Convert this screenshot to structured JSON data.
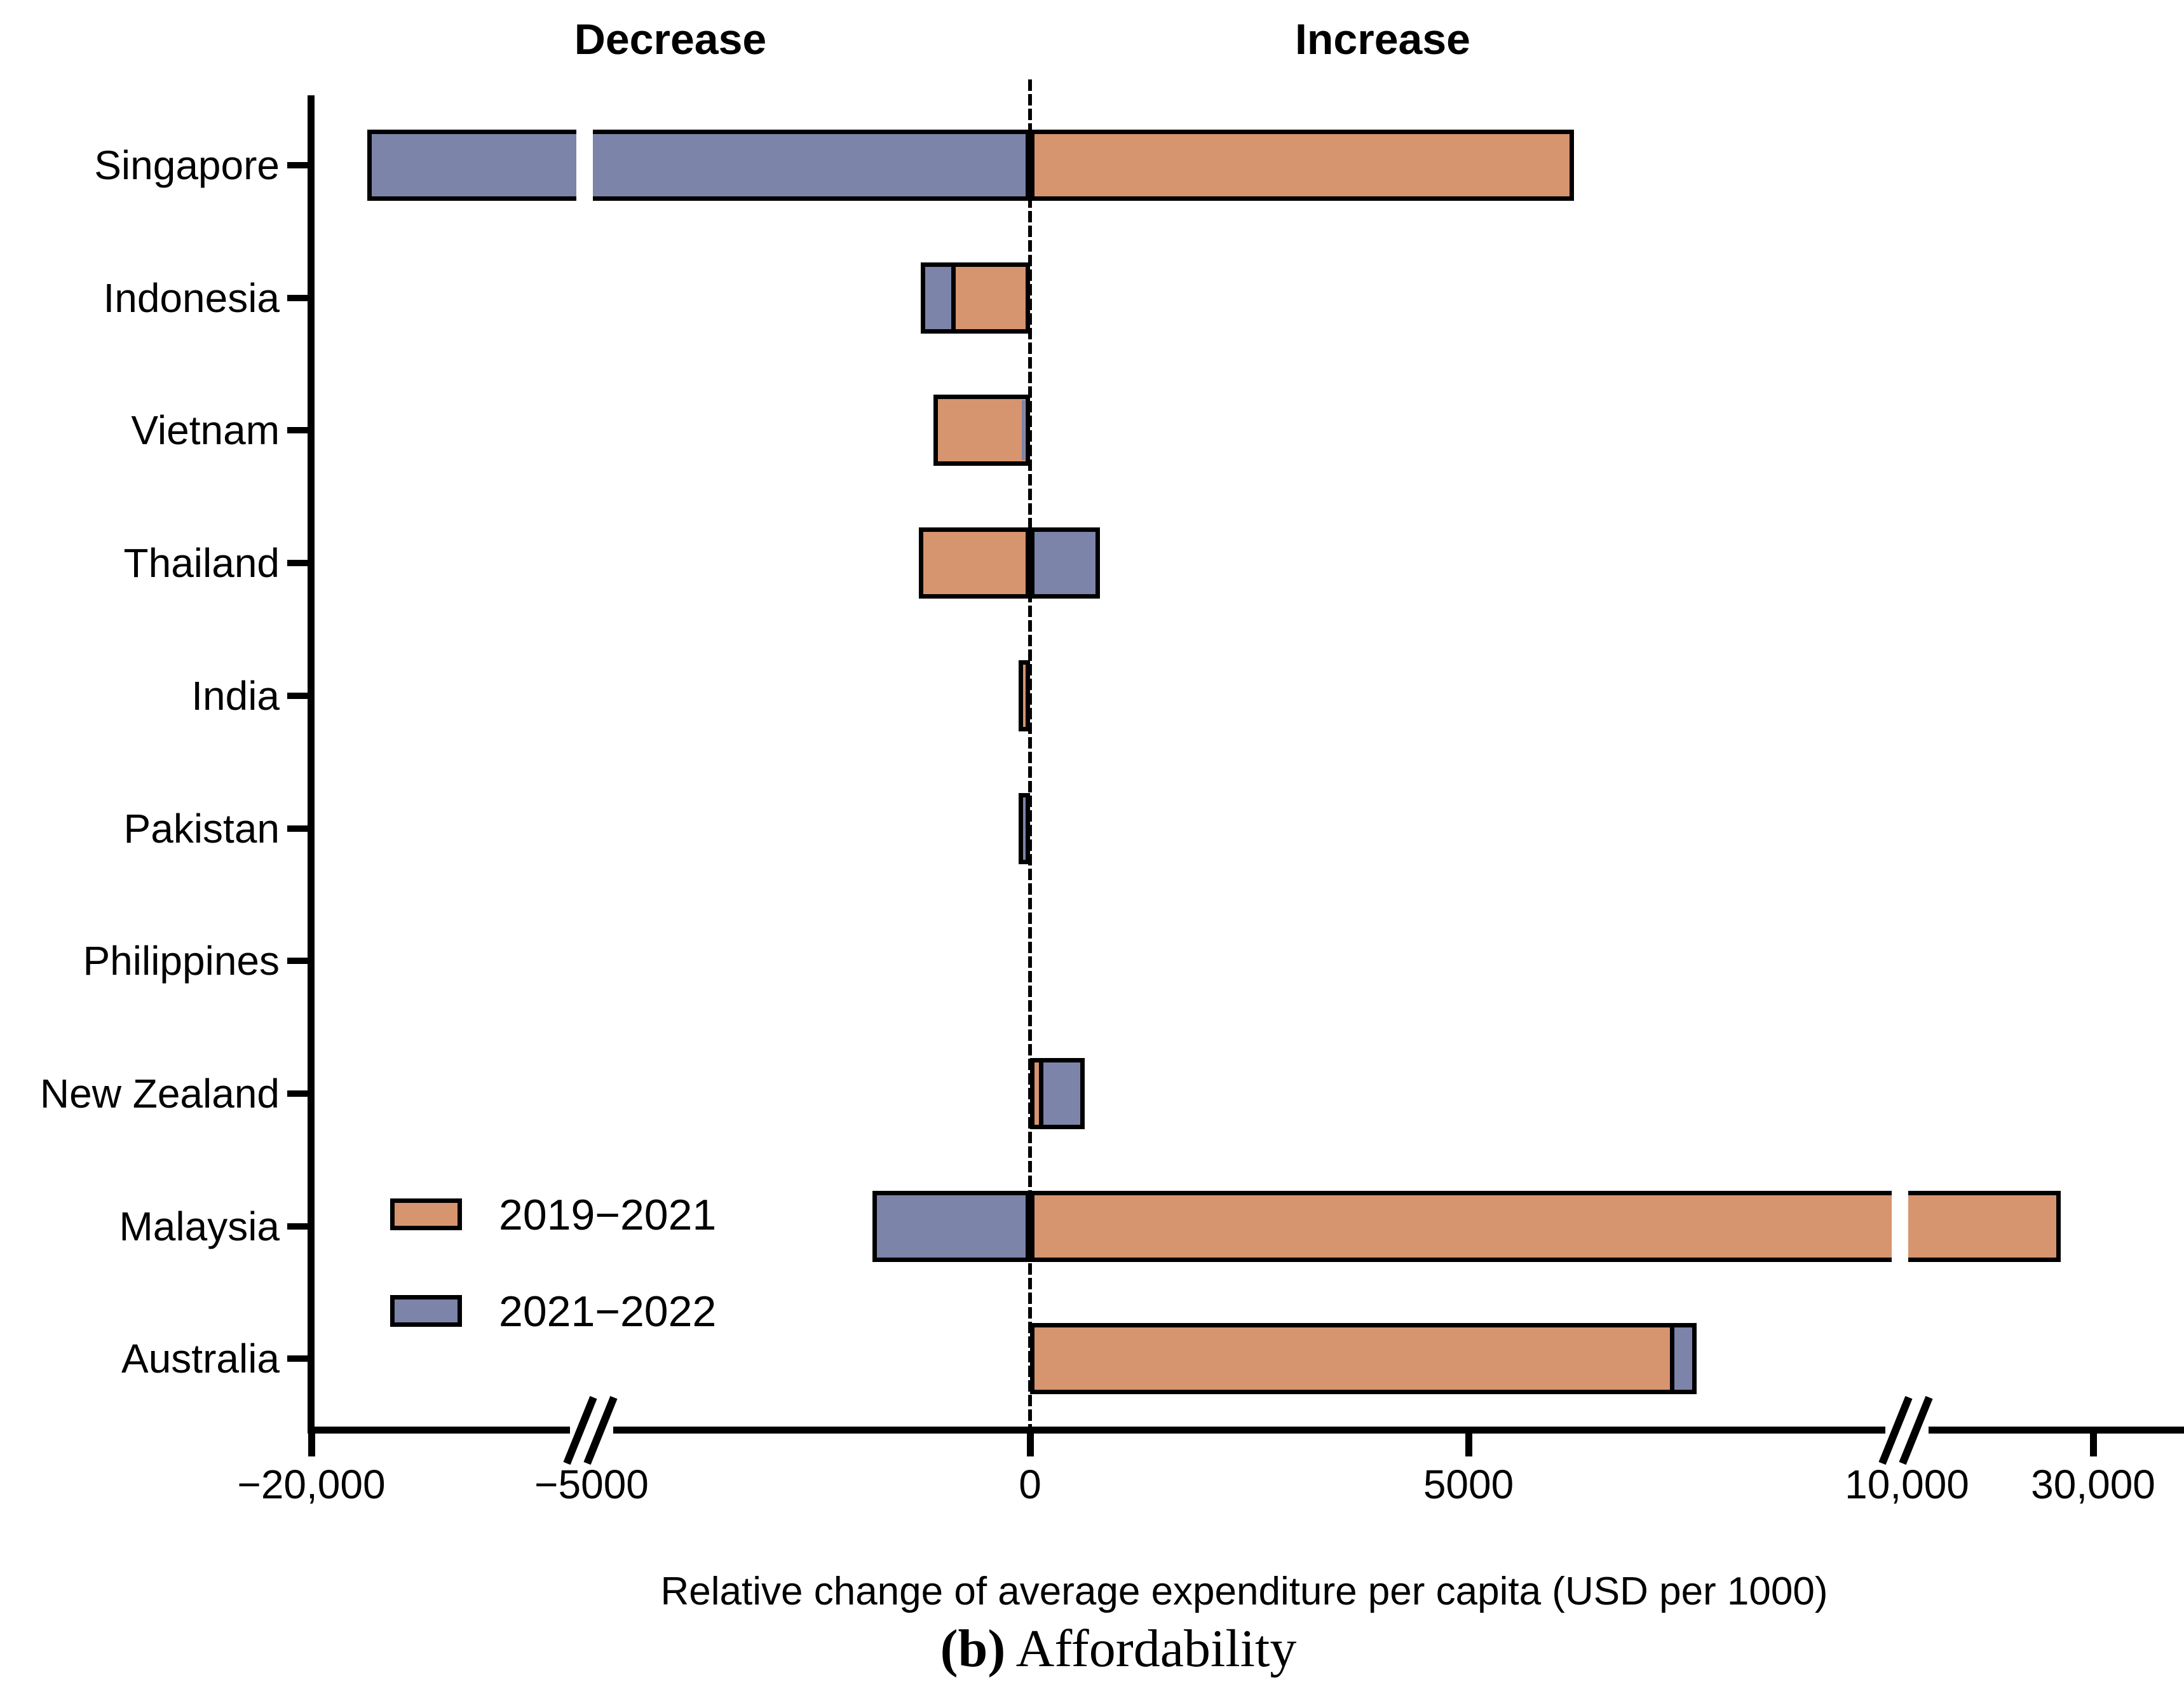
{
  "annotations": {
    "decrease": "Decrease",
    "increase": "Increase"
  },
  "legend": {
    "items": [
      {
        "label": "2019−2021",
        "color": "#D6946F"
      },
      {
        "label": "2021−2022",
        "color": "#7C84A9"
      }
    ]
  },
  "xlabel": "Relative change of average expenditure per capita (USD per 1000)",
  "caption": {
    "prefix": "(b)",
    "text": " Affordability"
  },
  "chart_data": {
    "type": "bar",
    "orientation": "horizontal",
    "title": "",
    "xlabel": "Relative change of average expenditure per capita (USD per 1000)",
    "ylabel": "",
    "grid": false,
    "legend_position": "lower-left-inside",
    "axis_breaks": [
      -5000,
      10000
    ],
    "x_ticks": [
      {
        "label": "−20,000",
        "value": -20000
      },
      {
        "label": "−5000",
        "value": -5000
      },
      {
        "label": "0",
        "value": 0
      },
      {
        "label": "5000",
        "value": 5000
      },
      {
        "label": "10,000",
        "value": 10000
      },
      {
        "label": "30,000",
        "value": 30000
      }
    ],
    "xlim": [
      -20000,
      32000
    ],
    "categories": [
      "Singapore",
      "Indonesia",
      "Vietnam",
      "Thailand",
      "India",
      "Pakistan",
      "Philippines",
      "New Zealand",
      "Malaysia",
      "Australia"
    ],
    "series": [
      {
        "name": "2019−2021",
        "color": "#D6946F",
        "values": [
          6200,
          -900,
          -1100,
          -1270,
          -130,
          0,
          0,
          150,
          26500,
          7350
        ]
      },
      {
        "name": "2021−2022",
        "color": "#7C84A9",
        "values": [
          -17000,
          -1250,
          -95,
          800,
          0,
          -130,
          0,
          620,
          -1800,
          7600
        ]
      }
    ],
    "rows": [
      {
        "label": "Singapore",
        "v_2019_2021": 6200,
        "v_2021_2022": -17000,
        "front": 0,
        "front_no_border": false
      },
      {
        "label": "Indonesia",
        "v_2019_2021": -900,
        "v_2021_2022": -1250,
        "front": 0,
        "front_no_border": false
      },
      {
        "label": "Vietnam",
        "v_2019_2021": -1100,
        "v_2021_2022": -95,
        "front": 1,
        "front_no_border": true
      },
      {
        "label": "Thailand",
        "v_2019_2021": -1270,
        "v_2021_2022": 800,
        "front": 0,
        "front_no_border": false
      },
      {
        "label": "India",
        "v_2019_2021": -130,
        "v_2021_2022": 0,
        "front": 0,
        "front_no_border": false
      },
      {
        "label": "Pakistan",
        "v_2019_2021": 0,
        "v_2021_2022": -130,
        "front": 0,
        "front_no_border": false
      },
      {
        "label": "Philippines",
        "v_2019_2021": 0,
        "v_2021_2022": 0,
        "front": 0,
        "front_no_border": false
      },
      {
        "label": "New Zealand",
        "v_2019_2021": 150,
        "v_2021_2022": 620,
        "front": 0,
        "front_no_border": false
      },
      {
        "label": "Malaysia",
        "v_2019_2021": 26500,
        "v_2021_2022": -1800,
        "front": 0,
        "front_no_border": false
      },
      {
        "label": "Australia",
        "v_2019_2021": 7350,
        "v_2021_2022": 7600,
        "front": 0,
        "front_no_border": false
      }
    ]
  }
}
